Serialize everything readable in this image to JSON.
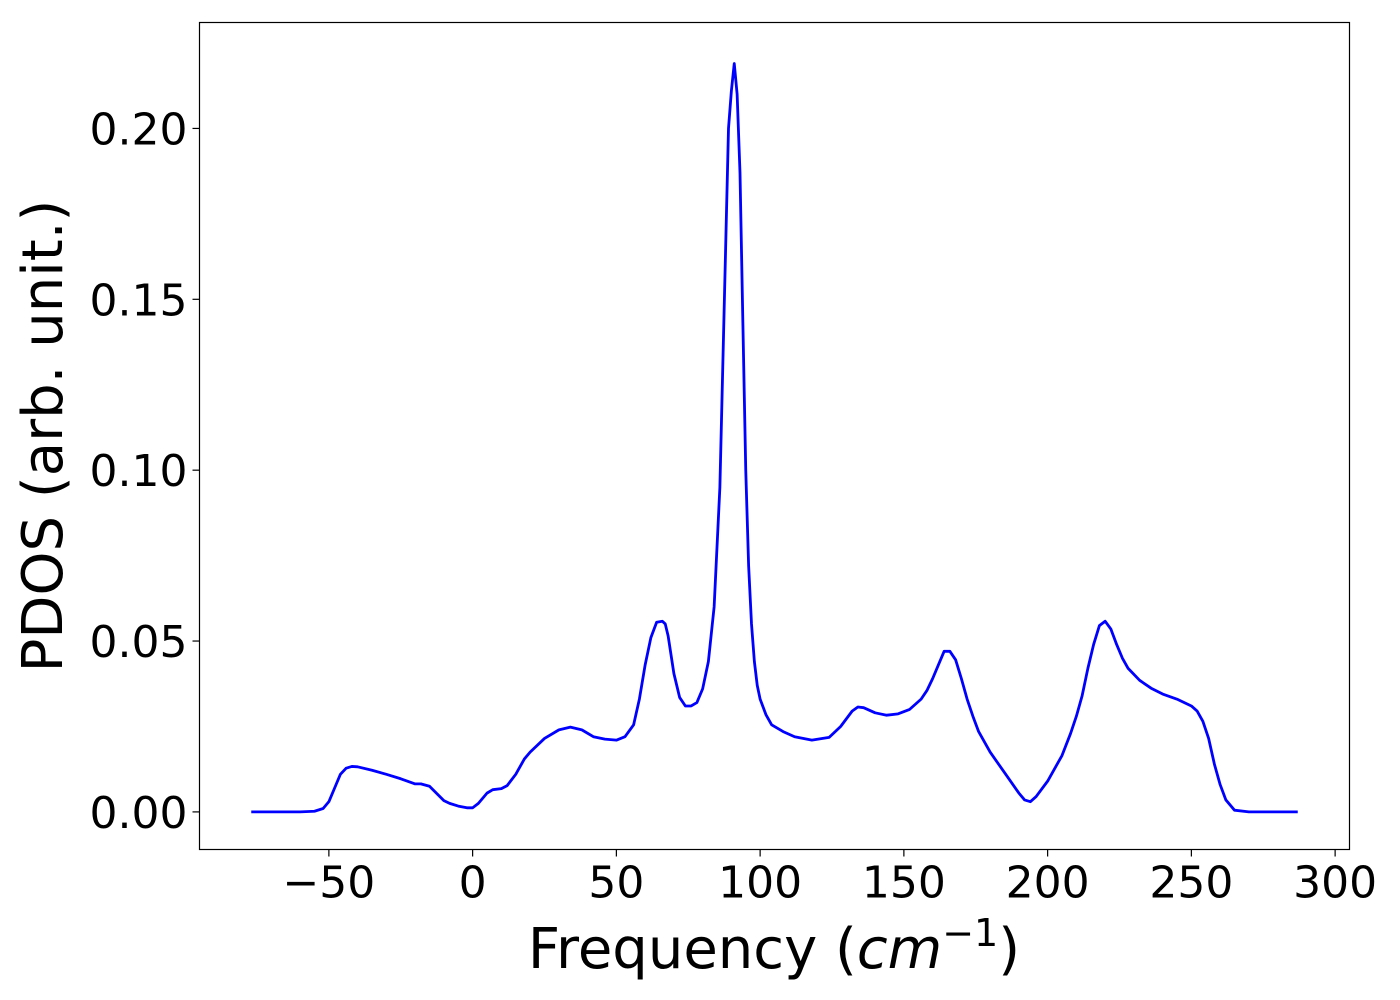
{
  "chart_data": {
    "type": "line",
    "title": "",
    "xlabel": "Frequency (",
    "xlabel_math": "cm",
    "xlabel_exp": "−1",
    "xlabel_close": ")",
    "ylabel": "PDOS (arb. unit.)",
    "xlim": [
      -95,
      305
    ],
    "ylim": [
      -0.011,
      0.231
    ],
    "xticks": [
      -50,
      0,
      50,
      100,
      150,
      200,
      250,
      300
    ],
    "xtick_labels": [
      "−50",
      "0",
      "50",
      "100",
      "150",
      "200",
      "250",
      "300"
    ],
    "yticks": [
      0.0,
      0.05,
      0.1,
      0.15,
      0.2
    ],
    "ytick_labels": [
      "0.00",
      "0.05",
      "0.10",
      "0.15",
      "0.20"
    ],
    "grid": false,
    "legend": "none",
    "series": [
      {
        "color": "#0000ff",
        "x": [
          -77,
          -60,
          -55,
          -52,
          -50,
          -48,
          -46,
          -44,
          -42,
          -40,
          -35,
          -30,
          -25,
          -20,
          -18,
          -15,
          -12,
          -10,
          -8,
          -5,
          -2,
          0,
          2,
          5,
          7,
          10,
          12,
          15,
          18,
          20,
          25,
          30,
          34,
          38,
          42,
          46,
          50,
          53,
          56,
          58,
          60,
          62,
          64,
          66,
          67,
          68,
          70,
          72,
          74,
          76,
          78,
          80,
          82,
          84,
          86,
          87,
          88,
          89,
          90,
          91,
          92,
          93,
          94,
          95,
          96,
          97,
          98,
          99,
          100,
          102,
          104,
          108,
          112,
          118,
          124,
          128,
          132,
          134,
          136,
          140,
          144,
          148,
          152,
          156,
          158,
          160,
          162,
          164,
          166,
          168,
          170,
          172,
          174,
          176,
          178,
          180,
          185,
          190,
          192,
          194,
          196,
          200,
          205,
          208,
          210,
          212,
          214,
          216,
          218,
          220,
          222,
          224,
          226,
          228,
          232,
          236,
          240,
          245,
          250,
          252,
          254,
          256,
          258,
          260,
          262,
          265,
          270,
          280,
          287
        ],
        "y": [
          0.0,
          0.0,
          0.0002,
          0.001,
          0.003,
          0.007,
          0.011,
          0.0128,
          0.0133,
          0.0132,
          0.0122,
          0.011,
          0.0097,
          0.0082,
          0.0082,
          0.0075,
          0.005,
          0.0033,
          0.0025,
          0.0017,
          0.0012,
          0.0012,
          0.0025,
          0.0055,
          0.0065,
          0.0068,
          0.0077,
          0.011,
          0.0155,
          0.0175,
          0.0215,
          0.024,
          0.0248,
          0.024,
          0.022,
          0.0213,
          0.021,
          0.022,
          0.0255,
          0.033,
          0.043,
          0.051,
          0.0555,
          0.0558,
          0.055,
          0.0515,
          0.0405,
          0.0335,
          0.031,
          0.031,
          0.032,
          0.036,
          0.044,
          0.06,
          0.095,
          0.13,
          0.165,
          0.2,
          0.211,
          0.219,
          0.21,
          0.187,
          0.143,
          0.1,
          0.072,
          0.055,
          0.044,
          0.037,
          0.033,
          0.0285,
          0.0255,
          0.0235,
          0.022,
          0.021,
          0.0218,
          0.025,
          0.0295,
          0.0307,
          0.0305,
          0.029,
          0.0283,
          0.0287,
          0.03,
          0.033,
          0.0355,
          0.039,
          0.043,
          0.047,
          0.047,
          0.0445,
          0.039,
          0.033,
          0.028,
          0.0235,
          0.0205,
          0.0175,
          0.0115,
          0.0055,
          0.0035,
          0.003,
          0.0045,
          0.009,
          0.0165,
          0.023,
          0.028,
          0.034,
          0.042,
          0.049,
          0.0545,
          0.0558,
          0.0535,
          0.049,
          0.045,
          0.042,
          0.0385,
          0.0362,
          0.0345,
          0.033,
          0.031,
          0.0295,
          0.0265,
          0.0215,
          0.014,
          0.008,
          0.0035,
          0.0005,
          0.0,
          0.0,
          0.0
        ]
      }
    ]
  }
}
